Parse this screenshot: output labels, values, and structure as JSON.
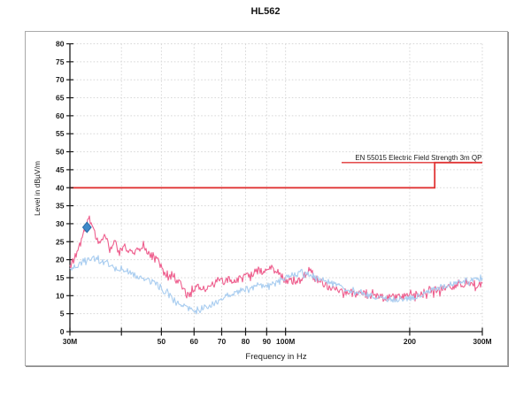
{
  "title": "HL562",
  "chart_data": {
    "type": "line",
    "title": "HL562",
    "xlabel": "Frequency in Hz",
    "ylabel": "Level in dBµV/m",
    "x_scale": "log",
    "x_range_mhz": [
      30,
      300
    ],
    "ylim": [
      0,
      80
    ],
    "grid": true,
    "legend": "none",
    "y_ticks": [
      0,
      5,
      10,
      15,
      20,
      25,
      30,
      35,
      40,
      45,
      50,
      55,
      60,
      65,
      70,
      75,
      80
    ],
    "x_ticks": [
      {
        "mhz": 30,
        "label": "30M"
      },
      {
        "mhz": 40,
        "label": ""
      },
      {
        "mhz": 50,
        "label": "50"
      },
      {
        "mhz": 60,
        "label": "60"
      },
      {
        "mhz": 70,
        "label": "70"
      },
      {
        "mhz": 80,
        "label": "80"
      },
      {
        "mhz": 90,
        "label": "90"
      },
      {
        "mhz": 100,
        "label": "100M"
      },
      {
        "mhz": 200,
        "label": "200"
      },
      {
        "mhz": 300,
        "label": "300M"
      }
    ],
    "limit": {
      "label": "EN 55015 Electric Field Strength 3m QP",
      "color": "#e03434",
      "points_mhz_db": [
        [
          30,
          40
        ],
        [
          230,
          40
        ],
        [
          230,
          47
        ],
        [
          300,
          47
        ]
      ]
    },
    "marker": {
      "shape": "diamond",
      "color": "#3f8ac9",
      "edge_color": "#2a6da8",
      "mhz": 33,
      "db": 29
    },
    "series": [
      {
        "name": "pink-trace",
        "color": "#ee5f8e",
        "noise_db": 1.1,
        "points_mhz_db": [
          [
            30,
            17.8
          ],
          [
            31,
            21.5
          ],
          [
            32,
            25.5
          ],
          [
            33,
            30.0
          ],
          [
            33.5,
            31.2
          ],
          [
            34,
            30.0
          ],
          [
            34.6,
            27.0
          ],
          [
            35.2,
            24.3
          ],
          [
            36,
            26.5
          ],
          [
            36.6,
            27.0
          ],
          [
            37.4,
            22.4
          ],
          [
            38.5,
            24.8
          ],
          [
            39.5,
            21.9
          ],
          [
            40.5,
            23.8
          ],
          [
            41.5,
            22.5
          ],
          [
            42.5,
            21.8
          ],
          [
            43.5,
            22.8
          ],
          [
            44.5,
            23.2
          ],
          [
            45.2,
            24.8
          ],
          [
            46,
            22.4
          ],
          [
            47,
            21.2
          ],
          [
            48,
            21.0
          ],
          [
            49,
            19.5
          ],
          [
            50,
            18.2
          ],
          [
            51,
            15.6
          ],
          [
            52,
            14.9
          ],
          [
            53,
            15.2
          ],
          [
            54,
            14.3
          ],
          [
            55,
            14.0
          ],
          [
            56,
            12.4
          ],
          [
            57,
            11.2
          ],
          [
            58,
            9.8
          ],
          [
            59,
            10.8
          ],
          [
            60,
            11.6
          ],
          [
            61,
            12.6
          ],
          [
            62,
            12.9
          ],
          [
            63,
            12.3
          ],
          [
            64,
            12.0
          ],
          [
            65,
            12.6
          ],
          [
            66,
            13.0
          ],
          [
            67,
            13.3
          ],
          [
            68,
            13.5
          ],
          [
            70,
            14.0
          ],
          [
            72,
            14.3
          ],
          [
            74,
            14.5
          ],
          [
            77,
            14.3
          ],
          [
            80,
            15.7
          ],
          [
            82,
            16.0
          ],
          [
            84,
            16.5
          ],
          [
            86,
            17.2
          ],
          [
            88,
            16.4
          ],
          [
            90,
            17.0
          ],
          [
            92,
            18.2
          ],
          [
            94,
            17.0
          ],
          [
            96,
            16.2
          ],
          [
            98,
            15.3
          ],
          [
            100,
            14.3
          ],
          [
            102,
            14.0
          ],
          [
            104,
            13.8
          ],
          [
            106,
            13.9
          ],
          [
            108,
            14.2
          ],
          [
            110,
            14.6
          ],
          [
            112,
            16.2
          ],
          [
            114,
            17.3
          ],
          [
            116,
            15.8
          ],
          [
            118,
            14.8
          ],
          [
            120,
            14.2
          ],
          [
            123,
            13.4
          ],
          [
            126,
            12.8
          ],
          [
            130,
            12.2
          ],
          [
            134,
            11.7
          ],
          [
            138,
            11.3
          ],
          [
            142,
            11.0
          ],
          [
            146,
            10.7
          ],
          [
            150,
            10.4
          ],
          [
            155,
            10.2
          ],
          [
            160,
            10.0
          ],
          [
            165,
            9.8
          ],
          [
            170,
            9.7
          ],
          [
            175,
            9.5
          ],
          [
            180,
            9.4
          ],
          [
            185,
            9.5
          ],
          [
            190,
            9.7
          ],
          [
            195,
            9.9
          ],
          [
            200,
            10.1
          ],
          [
            205,
            10.4
          ],
          [
            210,
            10.7
          ],
          [
            215,
            10.9
          ],
          [
            220,
            11.1
          ],
          [
            225,
            11.3
          ],
          [
            230,
            11.5
          ],
          [
            235,
            11.7
          ],
          [
            240,
            11.9
          ],
          [
            245,
            12.1
          ],
          [
            250,
            12.3
          ],
          [
            255,
            12.4
          ],
          [
            260,
            12.6
          ],
          [
            265,
            12.7
          ],
          [
            270,
            12.8
          ],
          [
            275,
            12.9
          ],
          [
            280,
            13.0
          ],
          [
            285,
            13.1
          ],
          [
            290,
            13.2
          ],
          [
            295,
            13.3
          ],
          [
            300,
            13.4
          ]
        ]
      },
      {
        "name": "lightblue-trace",
        "color": "#a9cdf0",
        "noise_db": 0.8,
        "points_mhz_db": [
          [
            30,
            17.5
          ],
          [
            31,
            18.3
          ],
          [
            32,
            19.2
          ],
          [
            33,
            20.1
          ],
          [
            34,
            20.5
          ],
          [
            35,
            20.0
          ],
          [
            36,
            19.3
          ],
          [
            37,
            18.7
          ],
          [
            38,
            18.2
          ],
          [
            39,
            17.8
          ],
          [
            40,
            17.5
          ],
          [
            41,
            17.1
          ],
          [
            42,
            16.4
          ],
          [
            43,
            15.7
          ],
          [
            44,
            14.9
          ],
          [
            45,
            14.6
          ],
          [
            46,
            14.3
          ],
          [
            47,
            14.0
          ],
          [
            48,
            13.6
          ],
          [
            49,
            12.8
          ],
          [
            50,
            11.8
          ],
          [
            51,
            11.0
          ],
          [
            52,
            10.3
          ],
          [
            53,
            9.6
          ],
          [
            54,
            8.8
          ],
          [
            55,
            8.2
          ],
          [
            56,
            7.5
          ],
          [
            57,
            7.0
          ],
          [
            58,
            6.6
          ],
          [
            59,
            6.3
          ],
          [
            60,
            6.1
          ],
          [
            61,
            6.2
          ],
          [
            62,
            6.3
          ],
          [
            63,
            6.5
          ],
          [
            64,
            6.8
          ],
          [
            65,
            7.1
          ],
          [
            66,
            7.5
          ],
          [
            67,
            7.9
          ],
          [
            68,
            8.3
          ],
          [
            70,
            9.2
          ],
          [
            72,
            9.9
          ],
          [
            74,
            10.5
          ],
          [
            77,
            11.2
          ],
          [
            80,
            11.9
          ],
          [
            83,
            12.3
          ],
          [
            86,
            12.6
          ],
          [
            89,
            12.8
          ],
          [
            92,
            13.0
          ],
          [
            95,
            13.4
          ],
          [
            98,
            14.2
          ],
          [
            100,
            14.9
          ],
          [
            102,
            15.4
          ],
          [
            104,
            15.7
          ],
          [
            106,
            15.9
          ],
          [
            108,
            16.0
          ],
          [
            110,
            16.2
          ],
          [
            113,
            16.1
          ],
          [
            116,
            15.6
          ],
          [
            120,
            14.9
          ],
          [
            124,
            14.2
          ],
          [
            128,
            13.5
          ],
          [
            132,
            13.0
          ],
          [
            136,
            12.5
          ],
          [
            140,
            11.6
          ],
          [
            145,
            11.1
          ],
          [
            150,
            10.7
          ],
          [
            155,
            10.3
          ],
          [
            160,
            10.0
          ],
          [
            165,
            9.6
          ],
          [
            170,
            9.3
          ],
          [
            175,
            9.1
          ],
          [
            180,
            8.9
          ],
          [
            185,
            8.8
          ],
          [
            190,
            8.8
          ],
          [
            195,
            9.0
          ],
          [
            200,
            9.3
          ],
          [
            205,
            9.7
          ],
          [
            210,
            10.1
          ],
          [
            215,
            10.5
          ],
          [
            220,
            10.9
          ],
          [
            225,
            11.3
          ],
          [
            230,
            11.7
          ],
          [
            235,
            12.1
          ],
          [
            240,
            12.5
          ],
          [
            245,
            12.8
          ],
          [
            250,
            13.1
          ],
          [
            255,
            13.4
          ],
          [
            260,
            13.7
          ],
          [
            265,
            13.9
          ],
          [
            270,
            14.1
          ],
          [
            275,
            14.2
          ],
          [
            280,
            14.3
          ],
          [
            285,
            14.4
          ],
          [
            290,
            14.5
          ],
          [
            295,
            14.5
          ],
          [
            300,
            14.6
          ]
        ]
      }
    ]
  }
}
